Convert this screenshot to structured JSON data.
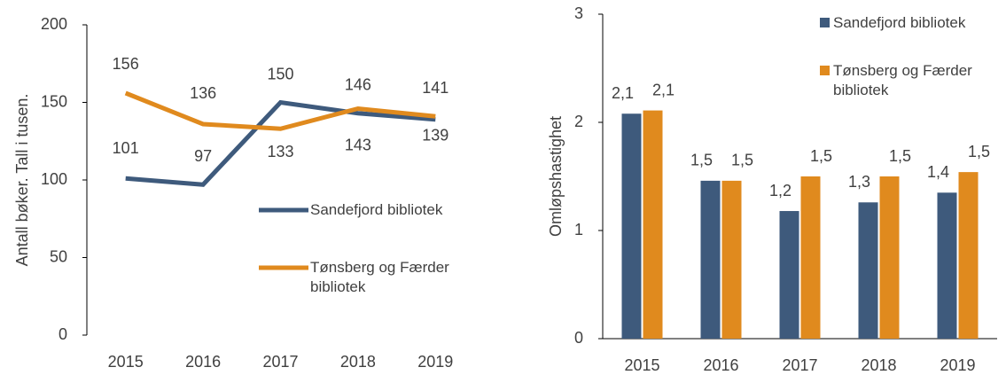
{
  "chart_data": [
    {
      "type": "line",
      "y_label": "Antall bøker. Tall i tusen.",
      "categories": [
        "2015",
        "2016",
        "2017",
        "2018",
        "2019"
      ],
      "ylim": [
        0,
        200
      ],
      "yticks": [
        0,
        50,
        100,
        150,
        200
      ],
      "series": [
        {
          "name": "Sandefjord bibliotek",
          "color": "#3e5a7c",
          "values": [
            101,
            97,
            150,
            143,
            139
          ]
        },
        {
          "name": "Tønsberg og Færder bibliotek",
          "color": "#e08a1e",
          "values": [
            156,
            136,
            133,
            146,
            141
          ]
        }
      ]
    },
    {
      "type": "bar",
      "y_label": "Omløpshastighet",
      "categories": [
        "2015",
        "2016",
        "2017",
        "2018",
        "2019"
      ],
      "ylim": [
        0,
        3
      ],
      "yticks": [
        0,
        1,
        2,
        3
      ],
      "series": [
        {
          "name": "Sandefjord bibliotek",
          "color": "#3e5a7c",
          "values": [
            2.08,
            1.46,
            1.18,
            1.26,
            1.35
          ],
          "value_labels": [
            "2,1",
            "1,5",
            "1,2",
            "1,3",
            "1,4"
          ]
        },
        {
          "name": "Tønsberg og Færder bibliotek",
          "color": "#e08a1e",
          "values": [
            2.11,
            1.46,
            1.5,
            1.5,
            1.54
          ],
          "value_labels": [
            "2,1",
            "1,5",
            "1,5",
            "1,5",
            "1,5"
          ]
        }
      ]
    }
  ]
}
